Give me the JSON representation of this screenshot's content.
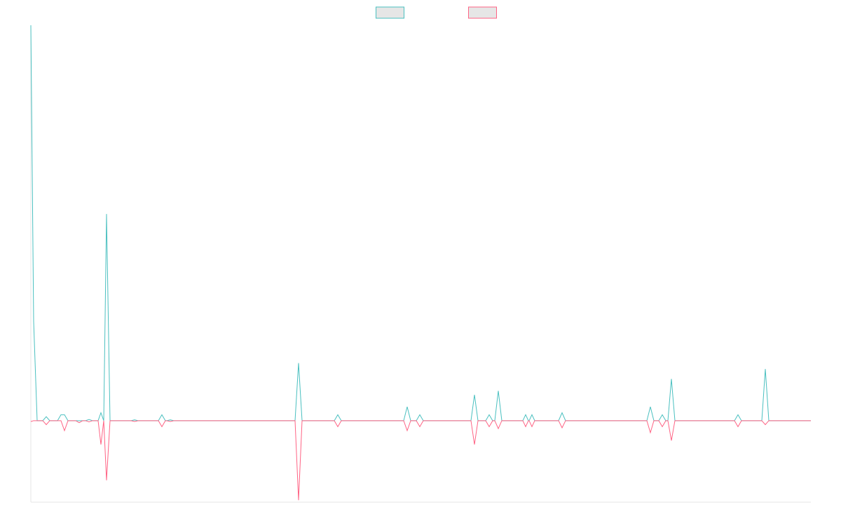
{
  "chart_data": {
    "type": "line",
    "x": [
      0,
      4,
      9,
      17,
      22,
      27,
      38,
      43,
      48,
      53,
      64,
      69,
      74,
      78,
      83,
      88,
      96,
      100,
      104,
      108,
      113,
      143,
      148,
      153,
      182,
      187,
      192,
      194,
      199,
      204,
      377,
      382,
      387,
      433,
      438,
      443,
      532,
      537,
      542,
      550,
      555,
      560,
      628,
      633,
      638,
      649,
      654,
      659,
      662,
      667,
      672,
      702,
      706,
      710,
      711,
      715,
      719,
      753,
      758,
      763,
      879,
      884,
      889,
      896,
      901,
      906,
      909,
      914,
      919,
      1004,
      1009,
      1014,
      1043,
      1048,
      1053,
      1113
    ],
    "series": [
      {
        "color": "#4bc0c0",
        "values": [
          99.5,
          25,
          0,
          0,
          1,
          0,
          0,
          1.5,
          1.5,
          0,
          0,
          0,
          0,
          0,
          0.3,
          0,
          0,
          2,
          0,
          52,
          0,
          0,
          0.2,
          0,
          0,
          1.5,
          0,
          0,
          0.2,
          0,
          0,
          14.5,
          0,
          0,
          1.5,
          0,
          0,
          3.5,
          0,
          0,
          1.5,
          0,
          0,
          6.5,
          0,
          0,
          1.5,
          0,
          0,
          7.5,
          0,
          0,
          1.5,
          0,
          0,
          1.5,
          0,
          0,
          2,
          0,
          0,
          3.5,
          0,
          0,
          1.5,
          0,
          0,
          10.5,
          0,
          0,
          1.5,
          0,
          0,
          13,
          0,
          0
        ]
      },
      {
        "color": "#ff6384",
        "values": [
          -0.2,
          0,
          0,
          0,
          -1,
          0,
          0,
          0,
          -2.5,
          0,
          0,
          -0.5,
          0,
          0,
          -0.3,
          0,
          0,
          -6,
          0,
          -15,
          0,
          0,
          -0.2,
          0,
          0,
          -1.5,
          0,
          0,
          -0.2,
          0,
          0,
          -20,
          0,
          0,
          -1.5,
          0,
          0,
          -2.5,
          0,
          0,
          -1.5,
          0,
          0,
          -6,
          0,
          0,
          -1.5,
          0,
          0,
          -2,
          0,
          0,
          -1.5,
          0,
          0,
          -1.5,
          0,
          0,
          -1.8,
          0,
          0,
          -3,
          0,
          0,
          -1.5,
          0,
          0,
          -5,
          0,
          0,
          -1.5,
          0,
          0,
          -1,
          0,
          0
        ]
      }
    ],
    "xlim": [
      0,
      1113
    ],
    "ylim": [
      -20.5,
      99.5
    ],
    "legend": "top",
    "legend_fill": "#e6e6e6"
  }
}
